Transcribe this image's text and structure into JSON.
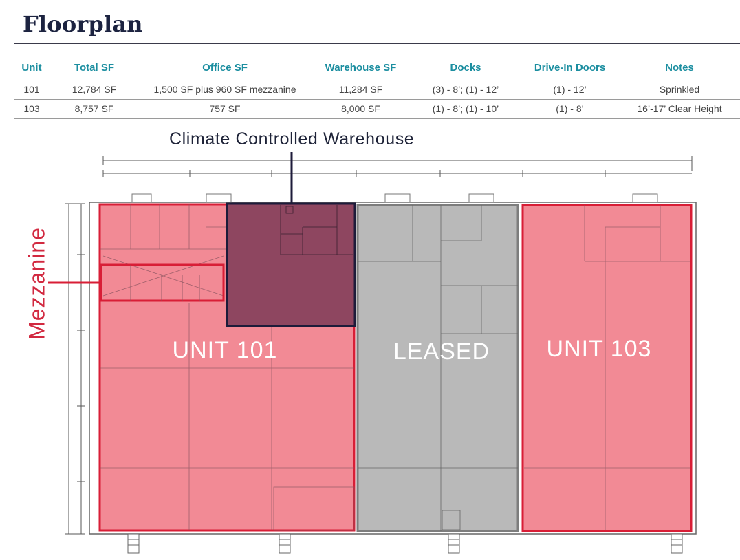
{
  "page": {
    "title": "Floorplan"
  },
  "table": {
    "headers": [
      "Unit",
      "Total SF",
      "Office SF",
      "Warehouse SF",
      "Docks",
      "Drive-In Doors",
      "Notes"
    ],
    "rows": [
      [
        "101",
        "12,784 SF",
        "1,500 SF plus 960 SF mezzanine",
        "11,284 SF",
        "(3) - 8’; (1) - 12’",
        "(1) - 12’",
        "Sprinkled"
      ],
      [
        "103",
        "8,757 SF",
        "757 SF",
        "8,000 SF",
        "(1) - 8’; (1) - 10’",
        "(1) - 8’",
        "16’-17’ Clear Height"
      ]
    ]
  },
  "floorplan": {
    "callouts": {
      "climate": "Climate Controlled Warehouse",
      "mezzanine": "Mezzanine"
    },
    "units": {
      "unit_101": "UNIT 101",
      "leased": "LEASED",
      "unit_103": "UNIT 103"
    },
    "colors": {
      "available_fill": "#f28a95",
      "available_border": "#d81e36",
      "leased_fill": "#b9b9b9",
      "leased_border": "#7d7d7d",
      "climate_fill": "#8e4660",
      "climate_border": "#1d1b3a",
      "accent_teal": "#1b8ea0",
      "title_navy": "#1c2340"
    }
  }
}
